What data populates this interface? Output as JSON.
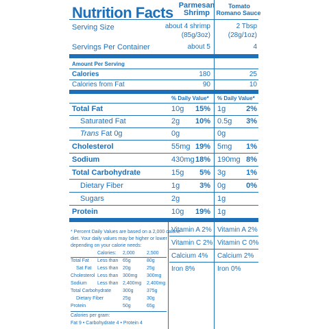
{
  "header": {
    "title": "Nutrition Facts",
    "col1_line1": "Parmesan",
    "col1_line2": "Shrimp",
    "col2_line1": "Tomato",
    "col2_line2": "Romano Sauce"
  },
  "serving": {
    "size_label": "Serving Size",
    "col1_size": "about 4 shrimp",
    "col1_weight": "(85g/3oz)",
    "col2_size": "2 Tbsp",
    "col2_weight": "(28g/1oz)",
    "per_container_label": "Servings Per Container",
    "col1_per_container": "about 5",
    "col2_per_container": "4"
  },
  "amount_per_serving": "Amount Per Serving",
  "calories": {
    "label": "Calories",
    "col1": "180",
    "col2": "25"
  },
  "calories_fat": {
    "label": "Calories from Fat",
    "col1": "90",
    "col2": "10"
  },
  "dv_header": {
    "col1": "% Daily Value*",
    "col2": "% Daily Value*"
  },
  "nutrients": [
    {
      "label": "Total Fat",
      "c1_amt": "10g",
      "c1_dv": "15%",
      "c2_amt": "1g",
      "c2_dv": "2%"
    },
    {
      "label": "Saturated Fat",
      "c1_amt": "2g",
      "c1_dv": "10%",
      "c2_amt": "0.5g",
      "c2_dv": "3%"
    },
    {
      "label_italic": "Trans",
      "label": " Fat 0g",
      "c1_amt": "0g",
      "c2_amt": "0g"
    },
    {
      "label": "Cholesterol",
      "c1_amt": "55mg",
      "c1_dv": "19%",
      "c2_amt": "5mg",
      "c2_dv": "1%"
    },
    {
      "label": "Sodium",
      "c1_amt": "430mg",
      "c1_dv": "18%",
      "c2_amt": "190mg",
      "c2_dv": "8%"
    },
    {
      "label": "Total Carbohydrate",
      "c1_amt": "15g",
      "c1_dv": "5%",
      "c2_amt": "3g",
      "c2_dv": "1%"
    },
    {
      "label": "Dietary Fiber",
      "c1_amt": "1g",
      "c1_dv": "3%",
      "c2_amt": "0g",
      "c2_dv": "0%"
    },
    {
      "label": "Sugars",
      "c1_amt": "2g",
      "c2_amt": "1g"
    },
    {
      "label": "Protein",
      "c1_amt": "10g",
      "c1_dv": "19%",
      "c2_amt": "1g"
    }
  ],
  "vitamins": [
    {
      "col1": "Vitamin A 2%",
      "col2": "Vitamin A 2%"
    },
    {
      "col1": "Vitamin C 2%",
      "col2": "Vitamin C 0%"
    },
    {
      "col1": "Calcium 4%",
      "col2": "Calcium 2%"
    },
    {
      "col1": "Iron 8%",
      "col2": "Iron 0%"
    }
  ],
  "footnote": {
    "line1": "* Percent Daily Values are based on a 2,000 calorie",
    "line2": "diet. Your daily values may be higher or lower",
    "line3": "depending on your calorie needs:",
    "calories_label": "Calories:",
    "cal_2000": "2,000",
    "cal_2500": "2,500",
    "rows": [
      {
        "name": "Total Fat",
        "qual": "Less than",
        "v1": "65g",
        "v2": "80g"
      },
      {
        "name": "Sat Fat",
        "qual": "Less than",
        "v1": "20g",
        "v2": "25g"
      },
      {
        "name": "Cholesterol",
        "qual": "Less than",
        "v1": "300mg",
        "v2": "300mg"
      },
      {
        "name": "Sodium",
        "qual": "Less than",
        "v1": "2,400mg",
        "v2": "2,400mg"
      },
      {
        "name": "Total Carbohydrate",
        "qual": "",
        "v1": "300g",
        "v2": "375g"
      },
      {
        "name": "Dietary Fiber",
        "qual": "",
        "v1": "25g",
        "v2": "30g"
      },
      {
        "name": "Protein",
        "qual": "",
        "v1": "50g",
        "v2": "65g"
      }
    ],
    "cal_per_gram": "Calories per gram:",
    "per_gram_values": "Fat 9 • Carbohydrate 4 • Protein 4"
  }
}
